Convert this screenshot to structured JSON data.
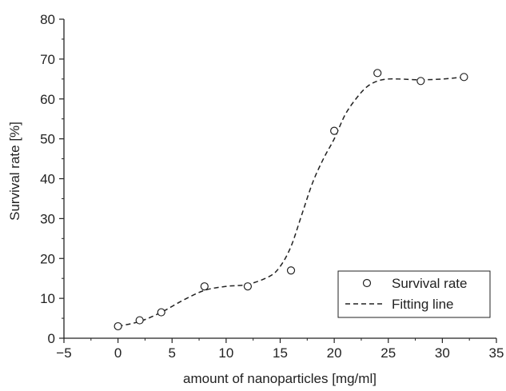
{
  "chart_data": {
    "type": "scatter",
    "xlabel": "amount of nanoparticles [mg/ml]",
    "ylabel": "Survival rate [%]",
    "xlim": [
      -5,
      35
    ],
    "ylim": [
      0,
      80
    ],
    "x_ticks": [
      -5,
      0,
      5,
      10,
      15,
      20,
      25,
      30,
      35
    ],
    "y_ticks": [
      0,
      10,
      20,
      30,
      40,
      50,
      60,
      70,
      80
    ],
    "grid": false,
    "legend_position": "bottom-right",
    "series": [
      {
        "name": "Survival rate",
        "kind": "scatter",
        "marker": "open-circle",
        "color": "#222222",
        "points": [
          {
            "x": 0,
            "y": 3
          },
          {
            "x": 2,
            "y": 4.5
          },
          {
            "x": 4,
            "y": 6.5
          },
          {
            "x": 8,
            "y": 13
          },
          {
            "x": 12,
            "y": 13
          },
          {
            "x": 16,
            "y": 17
          },
          {
            "x": 20,
            "y": 52
          },
          {
            "x": 24,
            "y": 66.5
          },
          {
            "x": 28,
            "y": 64.5
          },
          {
            "x": 32,
            "y": 65.5
          }
        ]
      },
      {
        "name": "Fitting line",
        "kind": "line",
        "style": "dashed",
        "color": "#222222",
        "points": [
          {
            "x": 0,
            "y": 3
          },
          {
            "x": 2,
            "y": 4.2
          },
          {
            "x": 4,
            "y": 6.5
          },
          {
            "x": 6,
            "y": 9.5
          },
          {
            "x": 8,
            "y": 12
          },
          {
            "x": 10,
            "y": 13
          },
          {
            "x": 12,
            "y": 13.5
          },
          {
            "x": 14,
            "y": 15.5
          },
          {
            "x": 15,
            "y": 18
          },
          {
            "x": 16,
            "y": 23
          },
          {
            "x": 17,
            "y": 31
          },
          {
            "x": 18,
            "y": 39
          },
          {
            "x": 19,
            "y": 45
          },
          {
            "x": 20,
            "y": 50
          },
          {
            "x": 21,
            "y": 56
          },
          {
            "x": 22,
            "y": 60
          },
          {
            "x": 23,
            "y": 63
          },
          {
            "x": 24,
            "y": 64.5
          },
          {
            "x": 25,
            "y": 65
          },
          {
            "x": 26,
            "y": 65
          },
          {
            "x": 28,
            "y": 64.8
          },
          {
            "x": 30,
            "y": 65
          },
          {
            "x": 32,
            "y": 65.5
          }
        ]
      }
    ]
  }
}
